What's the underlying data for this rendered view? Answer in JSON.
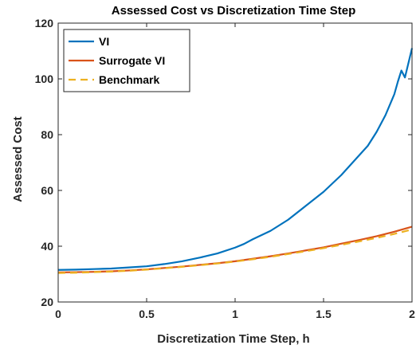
{
  "chart_data": {
    "type": "line",
    "title": "Assessed Cost vs Discretization Time Step",
    "xlabel": "Discretization Time Step, h",
    "ylabel": "Assessed Cost",
    "xlim": [
      0,
      2
    ],
    "ylim": [
      20,
      120
    ],
    "xticks": [
      0,
      0.5,
      1,
      1.5,
      2
    ],
    "xtick_labels": [
      "0",
      "0.5",
      "1",
      "1.5",
      "2"
    ],
    "yticks": [
      20,
      40,
      60,
      80,
      100,
      120
    ],
    "ytick_labels": [
      "20",
      "40",
      "60",
      "80",
      "100",
      "120"
    ],
    "grid": false,
    "legend_position": "top-left",
    "series": [
      {
        "name": "VI",
        "color": "#0072BD",
        "style": "solid",
        "x": [
          0,
          0.1,
          0.2,
          0.3,
          0.4,
          0.5,
          0.6,
          0.7,
          0.8,
          0.9,
          1.0,
          1.05,
          1.1,
          1.2,
          1.3,
          1.4,
          1.5,
          1.6,
          1.7,
          1.75,
          1.8,
          1.85,
          1.9,
          1.92,
          1.94,
          1.96,
          2.0
        ],
        "y": [
          31.5,
          31.6,
          31.8,
          32.0,
          32.4,
          32.8,
          33.6,
          34.6,
          35.9,
          37.4,
          39.5,
          40.8,
          42.5,
          45.5,
          49.5,
          54.5,
          59.5,
          65.5,
          72.5,
          76.0,
          81.0,
          87.0,
          94.5,
          99.0,
          103.0,
          100.5,
          111.0
        ]
      },
      {
        "name": "Surrogate VI",
        "color": "#D95319",
        "style": "solid",
        "x": [
          0,
          0.1,
          0.2,
          0.3,
          0.4,
          0.5,
          0.6,
          0.7,
          0.8,
          0.9,
          1.0,
          1.1,
          1.2,
          1.3,
          1.4,
          1.5,
          1.6,
          1.7,
          1.8,
          1.9,
          2.0
        ],
        "y": [
          30.6,
          30.7,
          30.8,
          31.0,
          31.3,
          31.7,
          32.2,
          32.7,
          33.3,
          33.9,
          34.6,
          35.5,
          36.4,
          37.4,
          38.5,
          39.6,
          40.9,
          42.2,
          43.6,
          45.2,
          47.0
        ]
      },
      {
        "name": "Benchmark",
        "color": "#EDB120",
        "style": "dashed",
        "x": [
          0,
          0.1,
          0.2,
          0.3,
          0.4,
          0.5,
          0.6,
          0.7,
          0.8,
          0.9,
          1.0,
          1.1,
          1.2,
          1.3,
          1.4,
          1.5,
          1.6,
          1.7,
          1.8,
          1.9,
          2.0
        ],
        "y": [
          30.4,
          30.5,
          30.7,
          30.9,
          31.2,
          31.6,
          32.1,
          32.6,
          33.2,
          33.8,
          34.5,
          35.3,
          36.2,
          37.2,
          38.2,
          39.3,
          40.5,
          41.7,
          43.0,
          44.4,
          46.0
        ]
      }
    ]
  }
}
